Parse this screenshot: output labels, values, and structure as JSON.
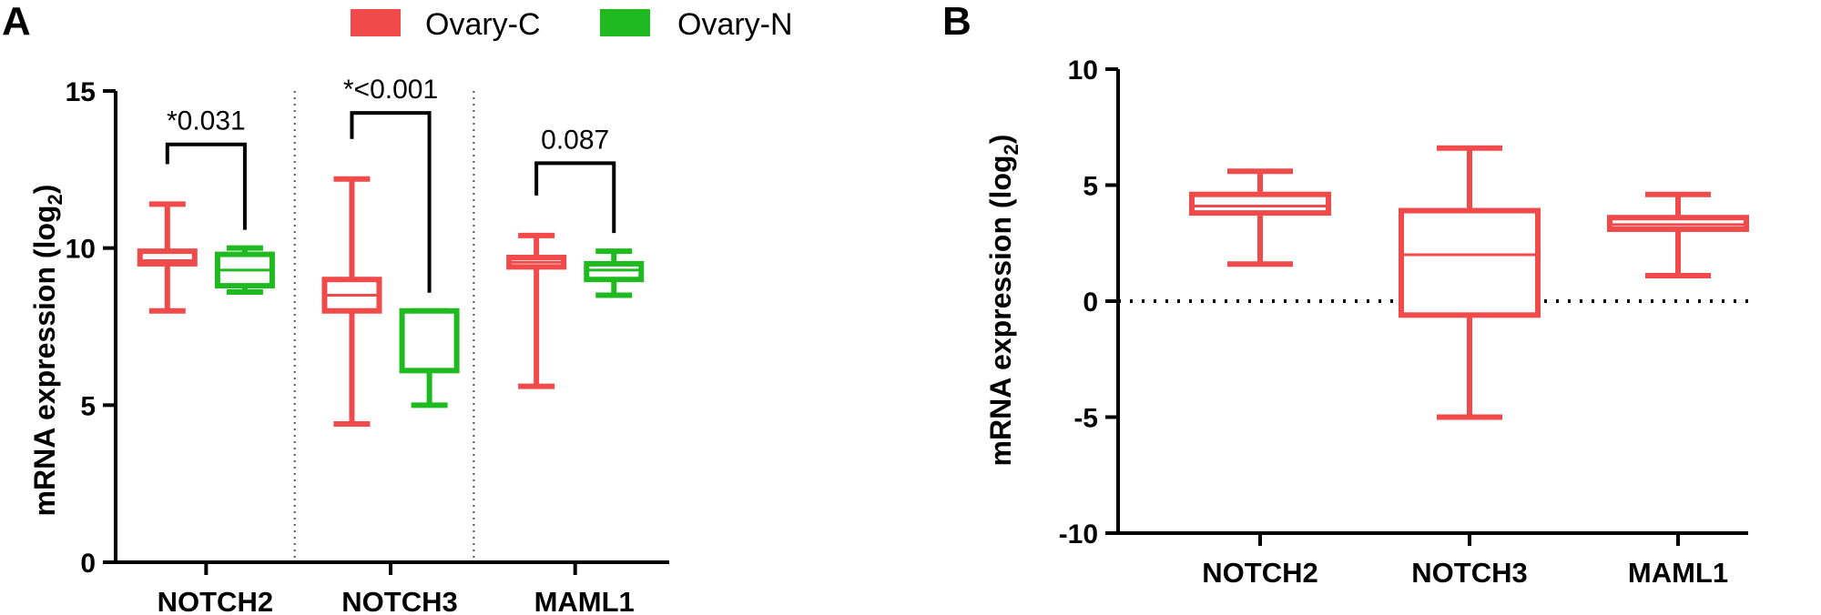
{
  "chart_data": [
    {
      "panel": "A",
      "type": "boxplot",
      "ylabel": "mRNA expression (log",
      "ylabel_sub": "2",
      "ylabel_close": ")",
      "ylim": [
        0,
        15
      ],
      "yticks": [
        "0",
        "5",
        "10",
        "15"
      ],
      "ytick_values": [
        0,
        5,
        10,
        15
      ],
      "legend": [
        {
          "name": "Ovary-C",
          "color": "#f04a4a"
        },
        {
          "name": "Ovary-N",
          "color": "#1fba1f"
        }
      ],
      "categories": [
        "NOTCH2",
        "NOTCH3",
        "MAML1"
      ],
      "boxes": [
        {
          "gene": "NOTCH2",
          "group": "Ovary-C",
          "min": 8.0,
          "q1": 9.5,
          "median": 9.6,
          "q3": 9.9,
          "max": 11.4
        },
        {
          "gene": "NOTCH2",
          "group": "Ovary-N",
          "min": 8.6,
          "q1": 8.8,
          "median": 9.3,
          "q3": 9.8,
          "max": 10.0
        },
        {
          "gene": "NOTCH3",
          "group": "Ovary-C",
          "min": 4.4,
          "q1": 8.0,
          "median": 8.5,
          "q3": 9.0,
          "max": 12.2
        },
        {
          "gene": "NOTCH3",
          "group": "Ovary-N",
          "min": 5.0,
          "q1": 6.1,
          "median": 8.0,
          "q3": 8.0,
          "max": 8.0
        },
        {
          "gene": "MAML1",
          "group": "Ovary-C",
          "min": 5.6,
          "q1": 9.4,
          "median": 9.55,
          "q3": 9.7,
          "max": 10.4
        },
        {
          "gene": "MAML1",
          "group": "Ovary-N",
          "min": 8.5,
          "q1": 9.0,
          "median": 9.3,
          "q3": 9.5,
          "max": 9.9
        }
      ],
      "comparisons": [
        {
          "gene": "NOTCH2",
          "label": "*0.031",
          "y": 13.3
        },
        {
          "gene": "NOTCH3",
          "label": "*<0.001",
          "y": 14.3
        },
        {
          "gene": "MAML1",
          "label": "0.087",
          "y": 12.7
        }
      ]
    },
    {
      "panel": "B",
      "type": "boxplot",
      "ylabel": "mRNA expression (log",
      "ylabel_sub": "2",
      "ylabel_close": ")",
      "ylim": [
        -10,
        10
      ],
      "yticks": [
        "-10",
        "-5",
        "0",
        "5",
        "10"
      ],
      "ytick_values": [
        -10,
        -5,
        0,
        5,
        10
      ],
      "reference_line": 0,
      "categories": [
        "NOTCH2",
        "NOTCH3",
        "MAML1"
      ],
      "boxes": [
        {
          "gene": "NOTCH2",
          "group": "Ovary-C",
          "min": 1.6,
          "q1": 3.8,
          "median": 4.1,
          "q3": 4.6,
          "max": 5.6
        },
        {
          "gene": "NOTCH3",
          "group": "Ovary-C",
          "min": -5.0,
          "q1": -0.6,
          "median": 2.0,
          "q3": 3.9,
          "max": 6.6
        },
        {
          "gene": "MAML1",
          "group": "Ovary-C",
          "min": 1.1,
          "q1": 3.1,
          "median": 3.3,
          "q3": 3.6,
          "max": 4.6
        }
      ]
    }
  ]
}
